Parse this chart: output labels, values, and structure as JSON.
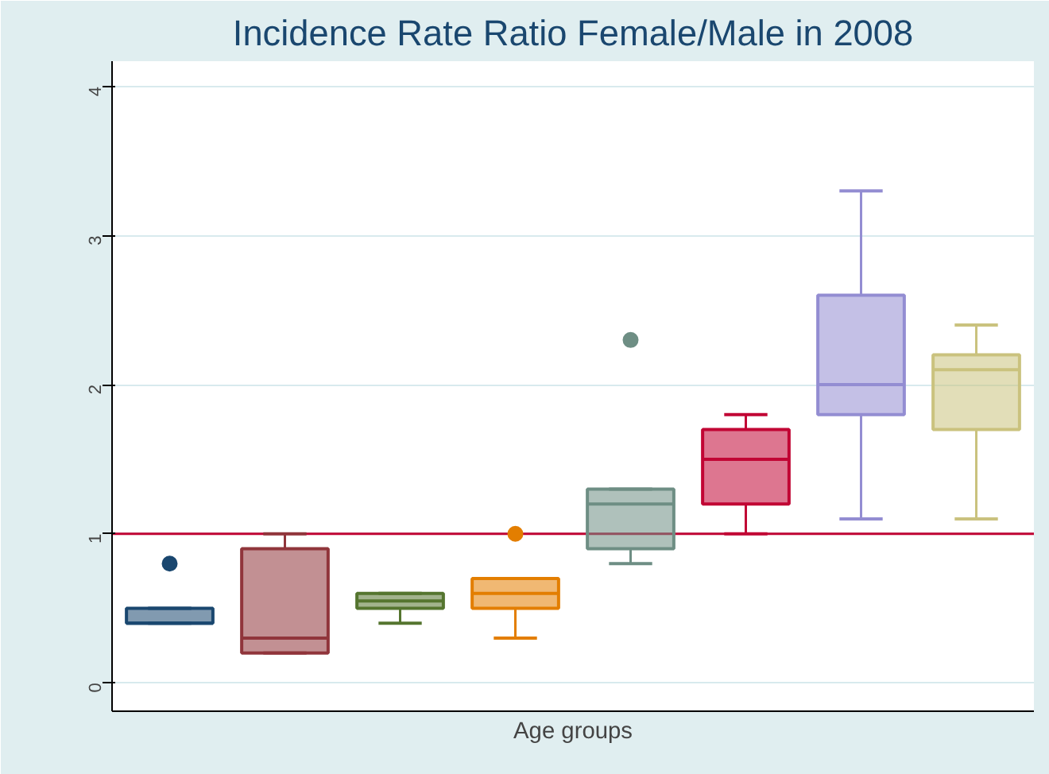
{
  "chart_data": {
    "type": "box",
    "title": "Incidence Rate Ratio Female/Male in 2008",
    "xlabel": "Age groups",
    "categories": [
      null,
      null,
      null,
      null,
      null,
      null,
      null,
      null
    ],
    "colors": [
      "#1a476f",
      "#90353b",
      "#55752f",
      "#e37e00",
      "#6e8e84",
      "#c10534",
      "#938dd2",
      "#cac27e"
    ],
    "boxes": [
      {
        "low": 0.4,
        "q1": 0.4,
        "median": 0.4,
        "q3": 0.5,
        "high": 0.5,
        "outliers": [
          0.8
        ]
      },
      {
        "low": 0.2,
        "q1": 0.2,
        "median": 0.3,
        "q3": 0.9,
        "high": 1.0
      },
      {
        "low": 0.4,
        "q1": 0.5,
        "median": 0.55,
        "q3": 0.6,
        "high": 0.6
      },
      {
        "low": 0.3,
        "q1": 0.5,
        "median": 0.6,
        "q3": 0.7,
        "high": 0.7,
        "outliers": [
          1.0
        ]
      },
      {
        "low": 0.8,
        "q1": 0.9,
        "median": 1.2,
        "q3": 1.3,
        "high": 1.3,
        "outliers": [
          2.3
        ]
      },
      {
        "low": 1.0,
        "q1": 1.2,
        "median": 1.5,
        "q3": 1.7,
        "high": 1.8
      },
      {
        "low": 1.1,
        "q1": 1.8,
        "median": 2.0,
        "q3": 2.6,
        "high": 3.3
      },
      {
        "low": 1.1,
        "q1": 1.7,
        "median": 2.1,
        "q3": 2.2,
        "high": 2.4
      }
    ],
    "ylim": [
      -0.19,
      4.17
    ],
    "yticks": [
      0,
      1,
      2,
      3,
      4
    ],
    "grid": "y",
    "ref_lines": [
      {
        "axis": "y",
        "value": 1,
        "color": "#c10534"
      }
    ]
  }
}
